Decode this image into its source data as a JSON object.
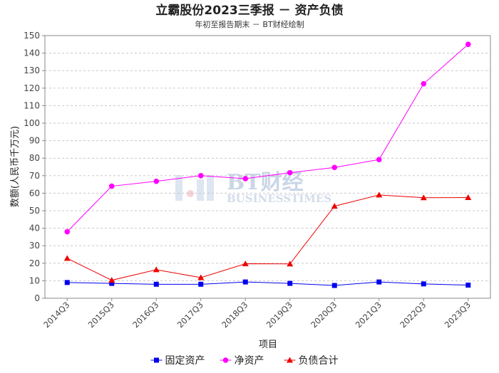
{
  "chart_data": {
    "type": "line",
    "title": "立霸股份2023三季报 － 资产负债",
    "subtitle": "年初至报告期末 － BT财经绘制",
    "xlabel": "项目",
    "ylabel": "数额(人民币千万元)",
    "categories": [
      "2014Q3",
      "2015Q3",
      "2016Q3",
      "2017Q3",
      "2018Q3",
      "2019Q3",
      "2020Q3",
      "2021Q3",
      "2022Q3",
      "2023Q3"
    ],
    "ylim": [
      0,
      150
    ],
    "yticks": [
      0,
      10,
      20,
      30,
      40,
      50,
      60,
      70,
      80,
      90,
      100,
      110,
      120,
      130,
      140,
      150
    ],
    "grid": true,
    "legend_position": "bottom",
    "series": [
      {
        "name": "固定资产",
        "color": "#0000ee",
        "marker": "square",
        "values": [
          9.0,
          8.5,
          8.0,
          8.0,
          9.3,
          8.5,
          7.3,
          9.3,
          8.2,
          7.5
        ]
      },
      {
        "name": "净资产",
        "color": "#ff00ff",
        "marker": "circle",
        "values": [
          38.0,
          64.0,
          66.8,
          70.0,
          68.3,
          71.7,
          74.7,
          79.2,
          122.5,
          145.0
        ]
      },
      {
        "name": "负债合计",
        "color": "#ee0000",
        "marker": "triangle",
        "values": [
          22.8,
          10.3,
          16.3,
          11.8,
          19.7,
          19.6,
          52.6,
          59.0,
          57.4,
          57.5
        ]
      }
    ],
    "watermark": {
      "brand": "BT财经",
      "tagline": "BUSINESSTIMES"
    }
  }
}
